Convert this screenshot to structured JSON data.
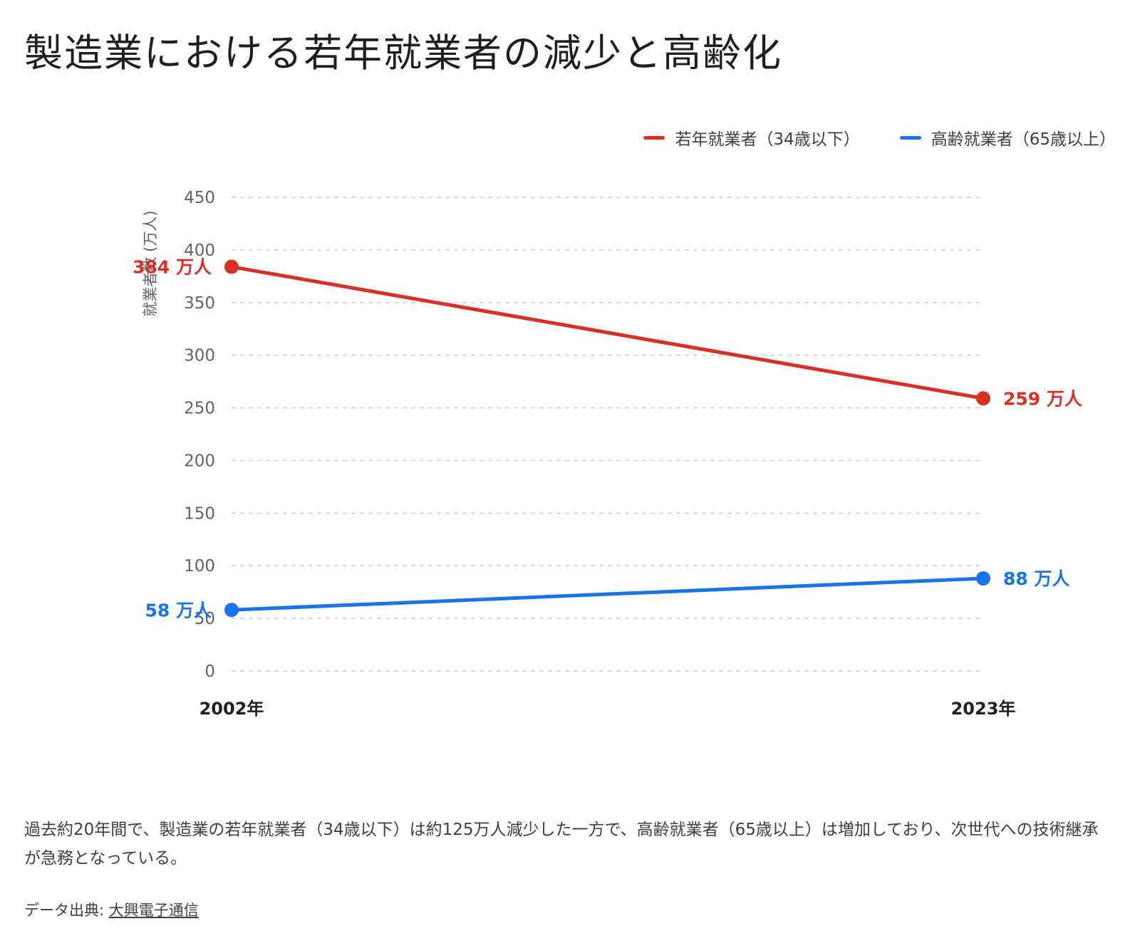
{
  "title": "製造業における若年就業者の減少と高齢化",
  "chart_data": {
    "type": "line",
    "categories": [
      "2002年",
      "2023年"
    ],
    "ylabel": "就業者数 (万人)",
    "ylim": [
      0,
      450
    ],
    "yticks": [
      0,
      50,
      100,
      150,
      200,
      250,
      300,
      350,
      400,
      450
    ],
    "grid": true,
    "legend_position": "top-right",
    "series": [
      {
        "name": "若年就業者（34歳以下）",
        "values": [
          384,
          259
        ],
        "labels": [
          "384 万人",
          "259 万人"
        ],
        "color": "#d93025"
      },
      {
        "name": "高齢就業者（65歳以上）",
        "values": [
          58,
          88
        ],
        "labels": [
          "58 万人",
          "88 万人"
        ],
        "color": "#1a73e8"
      }
    ]
  },
  "description": "過去約20年間で、製造業の若年就業者（34歳以下）は約125万人減少した一方で、高齢就業者（65歳以上）は増加しており、次世代への技術継承が急務となっている。",
  "source": {
    "prefix": "データ出典: ",
    "link_text": "大興電子通信"
  }
}
